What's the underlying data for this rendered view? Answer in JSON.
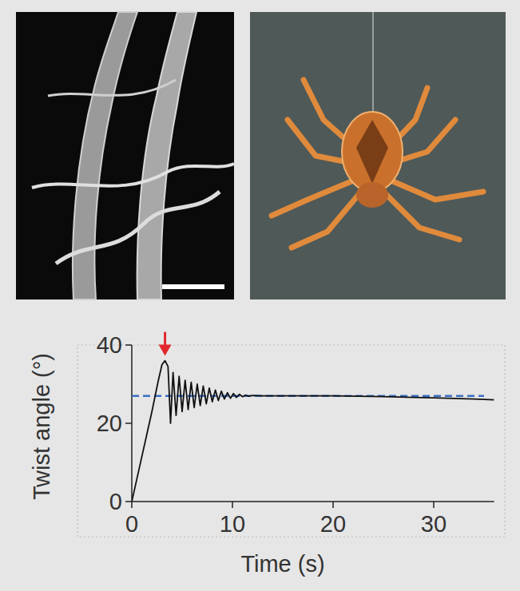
{
  "chart_data": {
    "type": "line",
    "x_label": "Time (s)",
    "y_label": "Twist angle (°)",
    "xlim": [
      0,
      36
    ],
    "ylim": [
      0,
      40
    ],
    "xticks": [
      0,
      10,
      20,
      30
    ],
    "yticks": [
      0,
      20,
      40
    ],
    "grid": false,
    "series": [
      {
        "color": "#111111",
        "line_style": "solid",
        "x": [
          0,
          1,
          2,
          2.6,
          3.0,
          3.3,
          3.6,
          3.85,
          4.1,
          4.4,
          4.7,
          5.0,
          5.3,
          5.6,
          5.9,
          6.2,
          6.5,
          6.8,
          7.1,
          7.4,
          7.7,
          8.0,
          8.3,
          8.6,
          8.9,
          9.2,
          9.5,
          9.8,
          10.1,
          10.4,
          10.7,
          11.0,
          11.3,
          11.6,
          12.0,
          13,
          15,
          20,
          25,
          30,
          34,
          36
        ],
        "values": [
          0,
          11.5,
          23,
          30.5,
          35,
          36,
          34.5,
          20,
          33,
          22,
          32,
          23,
          31,
          23.5,
          30.5,
          24,
          30,
          24.5,
          29.5,
          25,
          29,
          25.5,
          28.5,
          25.8,
          28.2,
          26.2,
          27.8,
          26.4,
          27.6,
          26.6,
          27.4,
          26.8,
          27.2,
          26.9,
          27.1,
          27,
          27,
          27,
          26.8,
          26.5,
          26.2,
          26
        ]
      },
      {
        "color": "#3a6fc4",
        "line_style": "dashed",
        "x": [
          0,
          35
        ],
        "values": [
          27,
          27
        ]
      }
    ]
  }
}
